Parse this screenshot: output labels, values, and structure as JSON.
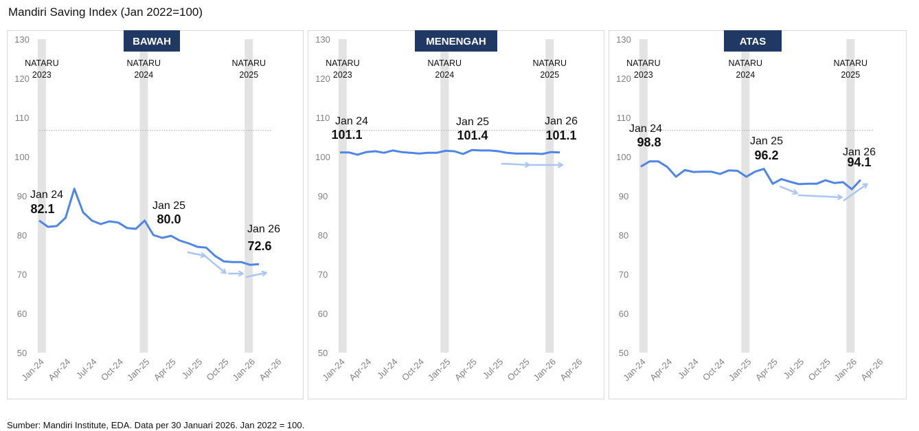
{
  "title": "Mandiri Saving Index (Jan 2022=100)",
  "footer": "Sumber: Mandiri Institute, EDA. Data per 30 Januari 2026. Jan 2022 = 100.",
  "colors": {
    "line": "#4f86e6",
    "arrow": "#a8c6f4",
    "nataru_band": "#e3e3e3",
    "title_box": "#1f3864",
    "reference_line": "#a6a6a6"
  },
  "chart_data": [
    {
      "type": "line",
      "title": "BAWAH",
      "x": [
        "Dec-23",
        "Jan-24",
        "Feb-24",
        "Mar-24",
        "Apr-24",
        "May-24",
        "Jun-24",
        "Jul-24",
        "Aug-24",
        "Sep-24",
        "Oct-24",
        "Nov-24",
        "Dec-24",
        "Jan-25",
        "Feb-25",
        "Mar-25",
        "Apr-25",
        "May-25",
        "Jun-25",
        "Jul-25",
        "Aug-25",
        "Sep-25",
        "Oct-25",
        "Nov-25",
        "Dec-25",
        "Jan-26"
      ],
      "values": [
        83.7,
        82.1,
        82.3,
        84.4,
        91.8,
        85.8,
        83.7,
        82.8,
        83.5,
        83.2,
        81.8,
        81.6,
        83.7,
        80.0,
        79.3,
        79.8,
        78.6,
        77.9,
        77.0,
        76.8,
        74.7,
        73.3,
        73.1,
        73.1,
        72.4,
        72.6
      ],
      "annotations": [
        {
          "label": "Jan 24",
          "value": "82.1"
        },
        {
          "label": "Jan 25",
          "value": "80.0"
        },
        {
          "label": "Jan 26",
          "value": "72.6"
        }
      ]
    },
    {
      "type": "line",
      "title": "MENENGAH",
      "x": [
        "Dec-23",
        "Jan-24",
        "Feb-24",
        "Mar-24",
        "Apr-24",
        "May-24",
        "Jun-24",
        "Jul-24",
        "Aug-24",
        "Sep-24",
        "Oct-24",
        "Nov-24",
        "Dec-24",
        "Jan-25",
        "Feb-25",
        "Mar-25",
        "Apr-25",
        "May-25",
        "Jun-25",
        "Jul-25",
        "Aug-25",
        "Sep-25",
        "Oct-25",
        "Nov-25",
        "Dec-25",
        "Jan-26"
      ],
      "values": [
        101.1,
        101.1,
        100.5,
        101.2,
        101.4,
        101.0,
        101.6,
        101.2,
        101.0,
        100.8,
        101.0,
        101.0,
        101.5,
        101.4,
        100.7,
        101.7,
        101.6,
        101.6,
        101.4,
        101.0,
        100.8,
        100.8,
        100.8,
        100.7,
        101.2,
        101.1
      ],
      "annotations": [
        {
          "label": "Jan 24",
          "value": "101.1"
        },
        {
          "label": "Jan 25",
          "value": "101.4"
        },
        {
          "label": "Jan 26",
          "value": "101.1"
        }
      ]
    },
    {
      "type": "line",
      "title": "ATAS",
      "x": [
        "Dec-23",
        "Jan-24",
        "Feb-24",
        "Mar-24",
        "Apr-24",
        "May-24",
        "Jun-24",
        "Jul-24",
        "Aug-24",
        "Sep-24",
        "Oct-24",
        "Nov-24",
        "Dec-24",
        "Jan-25",
        "Feb-25",
        "Mar-25",
        "Apr-25",
        "May-25",
        "Jun-25",
        "Jul-25",
        "Aug-25",
        "Sep-25",
        "Oct-25",
        "Nov-25",
        "Dec-25",
        "Jan-26"
      ],
      "values": [
        97.5,
        98.8,
        98.8,
        97.4,
        94.9,
        96.6,
        96.1,
        96.2,
        96.2,
        95.6,
        96.5,
        96.4,
        94.9,
        96.2,
        96.9,
        93.1,
        94.3,
        93.6,
        93.0,
        93.1,
        93.1,
        94.0,
        93.3,
        93.5,
        91.7,
        94.1
      ],
      "annotations": [
        {
          "label": "Jan 24",
          "value": "98.8"
        },
        {
          "label": "Jan 25",
          "value": "96.2"
        },
        {
          "label": "Jan 26",
          "value": "94.1"
        }
      ]
    }
  ],
  "axes": {
    "ylim": [
      50,
      130
    ],
    "yticks": [
      "50",
      "60",
      "70",
      "80",
      "90",
      "100",
      "110",
      "120",
      "130"
    ],
    "xticks": [
      "Jan-24",
      "Apr-24",
      "Jul-24",
      "Oct-24",
      "Jan-25",
      "Apr-25",
      "Jul-25",
      "Oct-25",
      "Jan-26",
      "Apr-26"
    ],
    "reference_line": 106.7,
    "grid": false
  },
  "nataru": [
    {
      "line1": "NATARU",
      "line2": "2023"
    },
    {
      "line1": "NATARU",
      "line2": "2024"
    },
    {
      "line1": "NATARU",
      "line2": "2025"
    }
  ]
}
